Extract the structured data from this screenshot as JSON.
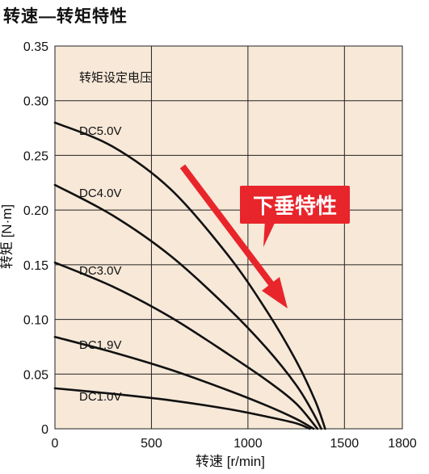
{
  "title": "转速—转矩特性",
  "chart_data": {
    "type": "line",
    "xlabel": "转速 [r/min]",
    "ylabel": "转矩 [N·m]",
    "xlim": [
      0,
      1800
    ],
    "ylim": [
      0,
      0.35
    ],
    "xticks": [
      0,
      500,
      1000,
      1500,
      1800
    ],
    "yticks": [
      0,
      0.05,
      0.1,
      0.15,
      0.2,
      0.25,
      0.3,
      0.35
    ],
    "xtick_labels": [
      "0",
      "500",
      "1000",
      "1500",
      "1800"
    ],
    "ytick_labels": [
      "0",
      "0.05",
      "0.10",
      "0.15",
      "0.20",
      "0.25",
      "0.30",
      "0.35"
    ],
    "grid": true,
    "plot_background": "#f7e8d8",
    "legend_title": "转矩设定电压",
    "series": [
      {
        "name": "DC5.0V",
        "x": [
          0,
          300,
          600,
          900,
          1100,
          1250,
          1350,
          1400
        ],
        "y": [
          0.28,
          0.258,
          0.219,
          0.158,
          0.107,
          0.062,
          0.025,
          0
        ]
      },
      {
        "name": "DC4.0V",
        "x": [
          0,
          300,
          600,
          900,
          1100,
          1250,
          1330,
          1380
        ],
        "y": [
          0.223,
          0.195,
          0.158,
          0.11,
          0.073,
          0.04,
          0.017,
          0
        ]
      },
      {
        "name": "DC3.0V",
        "x": [
          0,
          300,
          600,
          900,
          1100,
          1250,
          1360
        ],
        "y": [
          0.152,
          0.13,
          0.102,
          0.068,
          0.044,
          0.023,
          0
        ]
      },
      {
        "name": "DC1.9V",
        "x": [
          0,
          300,
          600,
          900,
          1100,
          1250,
          1340
        ],
        "y": [
          0.084,
          0.07,
          0.054,
          0.035,
          0.021,
          0.009,
          0
        ]
      },
      {
        "name": "DC1.0V",
        "x": [
          0,
          300,
          600,
          900,
          1100,
          1250,
          1320
        ],
        "y": [
          0.037,
          0.032,
          0.026,
          0.018,
          0.011,
          0.005,
          0
        ]
      }
    ],
    "annotation": {
      "text": "下垂特性",
      "color": "#e8252b",
      "text_color": "#ffffff"
    }
  }
}
